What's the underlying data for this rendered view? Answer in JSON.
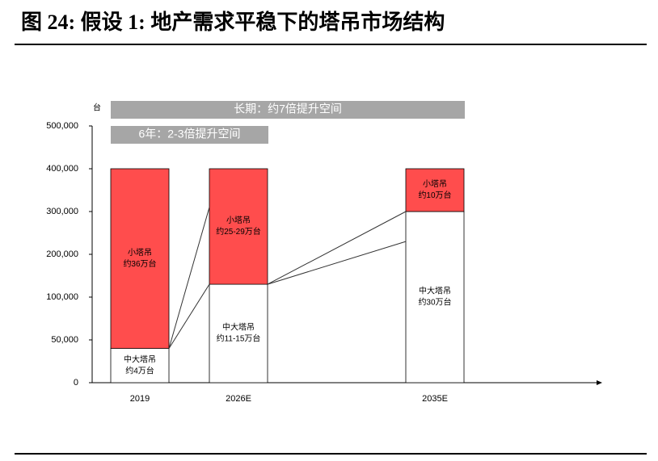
{
  "title": "图 24: 假设 1: 地产需求平稳下的塔吊市场结构",
  "chart_data": {
    "type": "stacked-bar",
    "y_unit": "台",
    "categories": [
      "2019",
      "2026E",
      "2035E"
    ],
    "series": [
      {
        "name": "中大塔吊",
        "color": "#ffffff",
        "values": [
          40000,
          130000,
          300000
        ],
        "bar_labels": [
          [
            "中大塔吊",
            "约4万台"
          ],
          [
            "中大塔吊",
            "约11-15万台"
          ],
          [
            "中大塔吊",
            "约30万台"
          ]
        ]
      },
      {
        "name": "小塔吊",
        "color": "#ff4d4d",
        "values": [
          360000,
          270000,
          100000
        ],
        "bar_labels": [
          [
            "小塔吊",
            "约36万台"
          ],
          [
            "小塔吊",
            "约25-29万台"
          ],
          [
            "小塔吊",
            "约10万台"
          ]
        ]
      }
    ],
    "ylim": [
      0,
      500000
    ],
    "yticks": [
      0,
      {
        "value": 50000,
        "label": "50,000"
      },
      {
        "value": 100000,
        "label": "100,000"
      },
      {
        "value": 200000,
        "label": "200,000"
      },
      {
        "value": 300000,
        "label": "300,000"
      },
      {
        "value": 400000,
        "label": "400,000"
      },
      {
        "value": 500000,
        "label": "500,000"
      }
    ],
    "banners": [
      "长期：约7倍提升空间",
      "6年：2-3倍提升空间"
    ]
  }
}
